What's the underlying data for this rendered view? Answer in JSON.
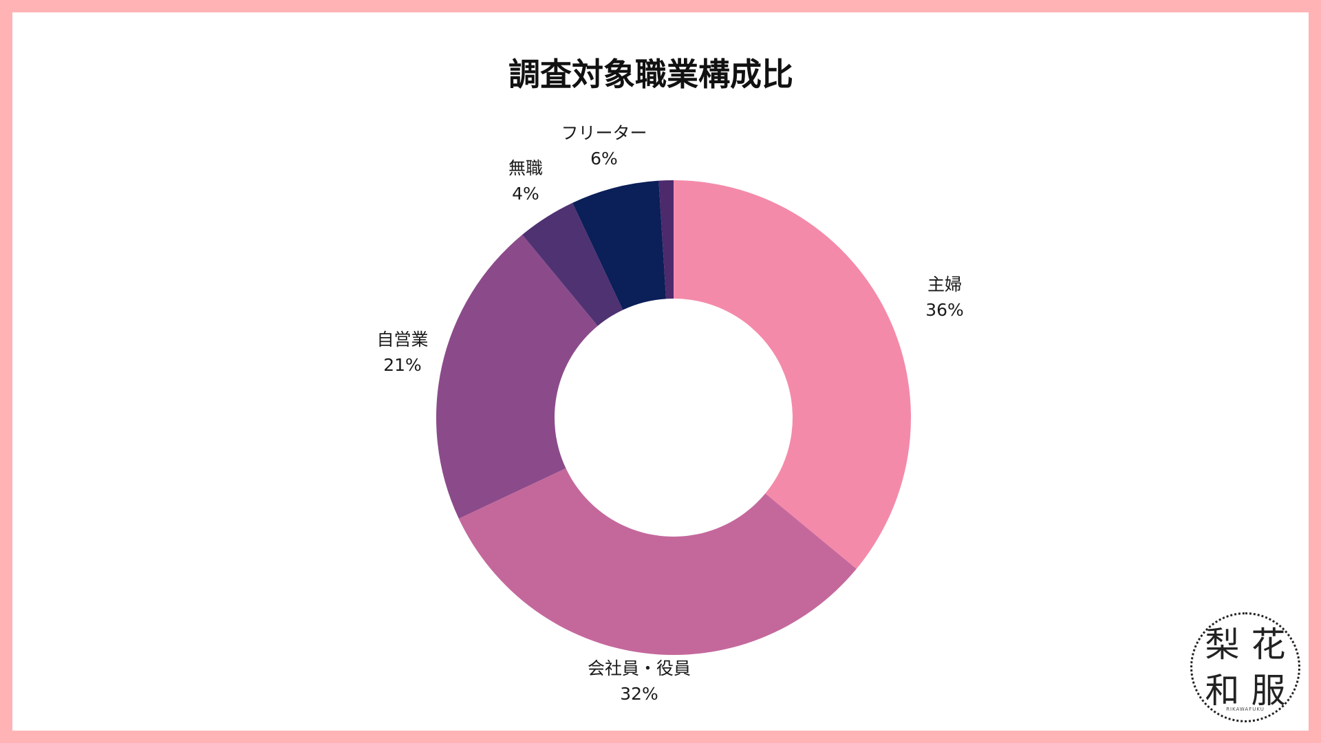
{
  "chart_data": {
    "type": "pie",
    "donut": true,
    "title": "調査対象職業構成比",
    "slices": [
      {
        "label": "主婦",
        "value_label": "36%",
        "value": 36,
        "color": "#f48aaa"
      },
      {
        "label": "会社員・役員",
        "value_label": "32%",
        "value": 32,
        "color": "#c4689c"
      },
      {
        "label": "自営業",
        "value_label": "21%",
        "value": 21,
        "color": "#8b4b8a"
      },
      {
        "label": "無職",
        "value_label": "4%",
        "value": 4,
        "color": "#4f3272"
      },
      {
        "label": "フリーター",
        "value_label": "6%",
        "value": 6,
        "color": "#0b1f58"
      },
      {
        "label": "",
        "value_label": "",
        "value": 1,
        "color": "#4c2a6c"
      }
    ],
    "start_angle_deg": 0,
    "direction": "clockwise"
  },
  "logo": {
    "chars": [
      "梨",
      "花",
      "和",
      "服"
    ],
    "subtext": "RIKAWAFUKU"
  }
}
